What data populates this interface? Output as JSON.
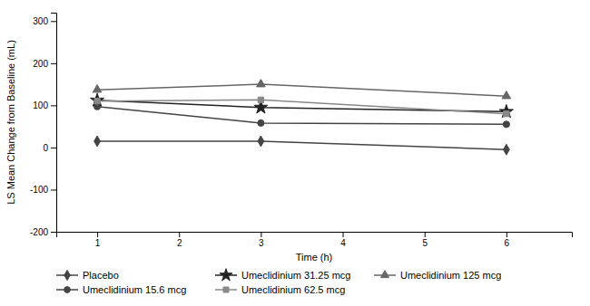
{
  "chart_data": {
    "type": "line",
    "xlabel": "Time (h)",
    "ylabel": "LS Mean Change from Baseline (mL)",
    "x": [
      1,
      3,
      6
    ],
    "xlim": [
      0.5,
      6.8
    ],
    "xticks": [
      1,
      2,
      3,
      4,
      5,
      6
    ],
    "ylim": [
      -200,
      320
    ],
    "yticks": [
      -200,
      -100,
      0,
      100,
      200,
      300
    ],
    "grid": false,
    "legend": "bottom",
    "series": [
      {
        "name": "Placebo",
        "color": "#444444",
        "marker": "diamond",
        "line_style": "solid",
        "values": [
          15,
          15,
          -5
        ]
      },
      {
        "name": "Umeclidinium 15.6 mcg",
        "color": "#444444",
        "marker": "circle",
        "line_style": "solid",
        "values": [
          97,
          58,
          55
        ]
      },
      {
        "name": "Umeclidinium 31.25 mcg",
        "color": "#222222",
        "marker": "star",
        "line_style": "solid",
        "values": [
          112,
          95,
          85
        ]
      },
      {
        "name": "Umeclidinium 62.5 mcg",
        "color": "#888888",
        "marker": "square",
        "line_style": "solid",
        "values": [
          110,
          113,
          80
        ]
      },
      {
        "name": "Umeclidinium 125 mcg",
        "color": "#666666",
        "marker": "triangle",
        "line_style": "solid",
        "values": [
          137,
          150,
          122
        ]
      }
    ]
  }
}
